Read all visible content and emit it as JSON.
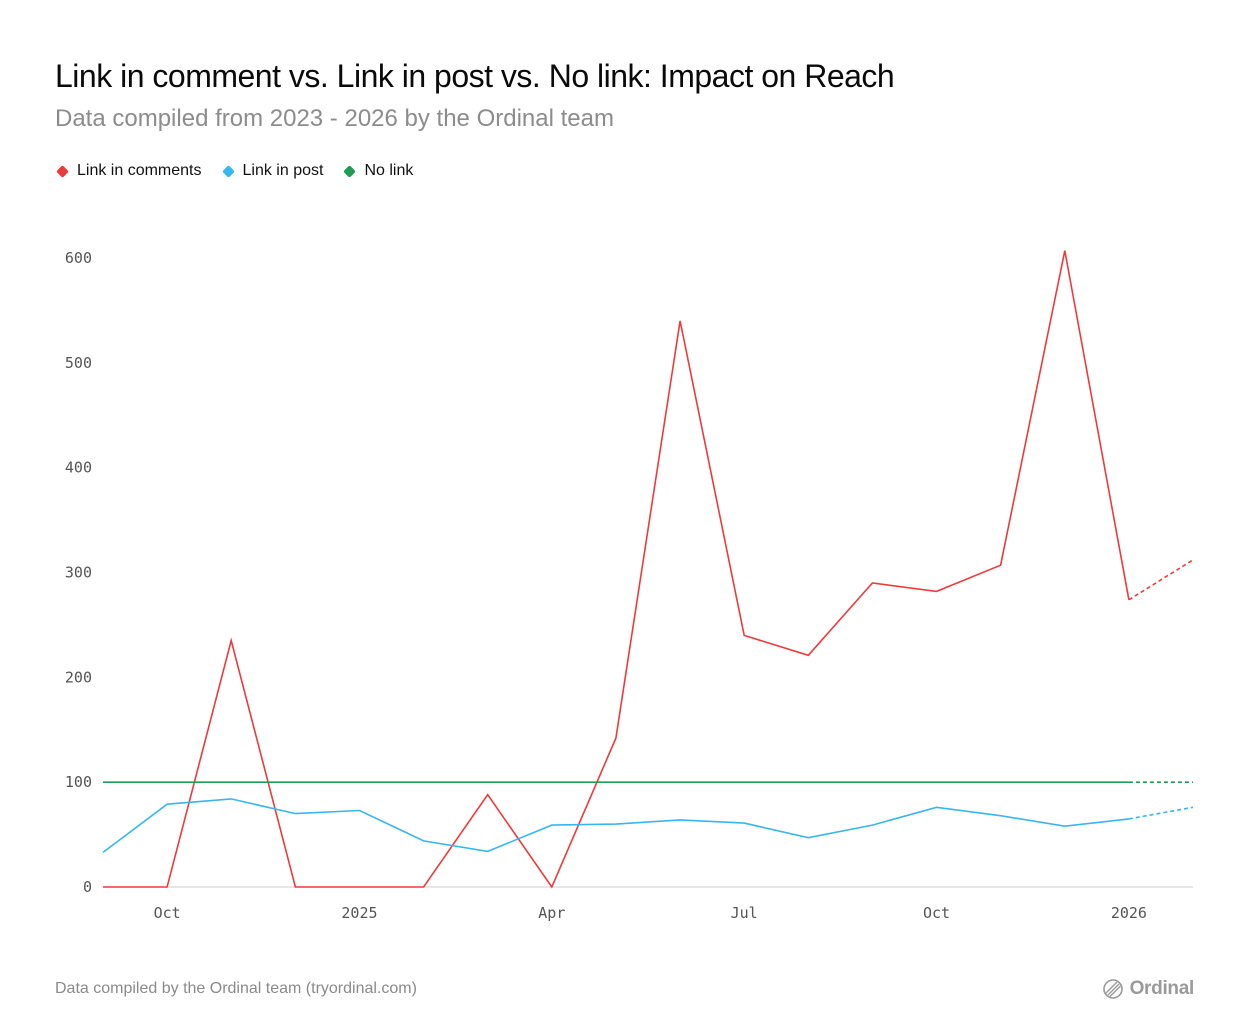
{
  "chart_data": {
    "type": "line",
    "title": "Link in comment vs. Link in post vs. No link: Impact on Reach",
    "subtitle": "Data compiled from 2023 - 2026 by the Ordinal team",
    "xlabel": "",
    "ylabel": "",
    "ylim": [
      0,
      600
    ],
    "yticks": [
      "0",
      "100",
      "200",
      "300",
      "400",
      "500",
      "600"
    ],
    "x_tick_labels": [
      "Oct",
      "2025",
      "Apr",
      "Jul",
      "Oct",
      "2026"
    ],
    "x_tick_months": [
      "2024-10",
      "2025-01",
      "2025-04",
      "2025-07",
      "2025-10",
      "2026-01"
    ],
    "x": [
      "2024-09",
      "2024-10",
      "2024-11",
      "2024-12",
      "2025-01",
      "2025-02",
      "2025-03",
      "2025-04",
      "2025-05",
      "2025-06",
      "2025-07",
      "2025-08",
      "2025-09",
      "2025-10",
      "2025-11",
      "2025-12",
      "2026-01",
      "2026-02"
    ],
    "projected_from_index": 16,
    "series": [
      {
        "name": "Link in comments",
        "color": "#ef3a3a",
        "values": [
          0,
          0,
          235,
          0,
          0,
          0,
          88,
          0,
          142,
          540,
          240,
          221,
          290,
          282,
          307,
          607,
          274,
          312
        ]
      },
      {
        "name": "Link in post",
        "color": "#38b6f0",
        "values": [
          33,
          79,
          84,
          70,
          73,
          44,
          34,
          59,
          60,
          64,
          61,
          47,
          59,
          76,
          68,
          58,
          65,
          76
        ]
      },
      {
        "name": "No link",
        "color": "#1f9d55",
        "values": [
          100,
          100,
          100,
          100,
          100,
          100,
          100,
          100,
          100,
          100,
          100,
          100,
          100,
          100,
          100,
          100,
          100,
          100
        ]
      }
    ]
  },
  "footer": {
    "source": "Data compiled by the Ordinal team (tryordinal.com)",
    "brand": "Ordinal",
    "brand_icon": "ordinal-logo-icon"
  }
}
